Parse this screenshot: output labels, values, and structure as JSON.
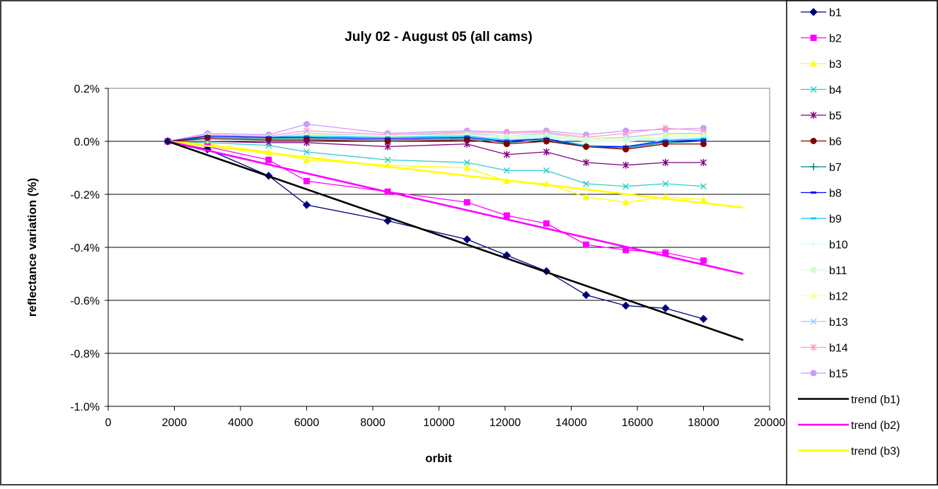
{
  "chart_data": {
    "type": "line",
    "title": "July 02 - August 05 (all cams)",
    "xlabel": "orbit",
    "ylabel": "reflectance variation (%)",
    "xlim": [
      0,
      20000
    ],
    "ylim": [
      -1.0,
      0.2
    ],
    "x_ticks": [
      "0",
      "2000",
      "4000",
      "6000",
      "8000",
      "10000",
      "12000",
      "14000",
      "16000",
      "18000",
      "20000"
    ],
    "y_ticks": [
      "0.2%",
      "0.0%",
      "-0.2%",
      "-0.4%",
      "-0.6%",
      "-0.8%",
      "-1.0%"
    ],
    "grid": "horizontal major",
    "legend_position": "right",
    "x": [
      1800,
      3000,
      4850,
      6000,
      8450,
      10850,
      12050,
      13250,
      14450,
      15650,
      16850,
      18000
    ],
    "series": [
      {
        "name": "b1",
        "color": "#000080",
        "marker": "diamond",
        "values": [
          0.0,
          -0.03,
          -0.13,
          -0.24,
          -0.3,
          -0.37,
          -0.43,
          -0.49,
          -0.58,
          -0.62,
          -0.63,
          -0.67
        ]
      },
      {
        "name": "b2",
        "color": "#ff00ff",
        "marker": "square",
        "values": [
          0.0,
          -0.02,
          -0.07,
          -0.15,
          -0.19,
          -0.23,
          -0.28,
          -0.31,
          -0.39,
          -0.41,
          -0.42,
          -0.45
        ]
      },
      {
        "name": "b3",
        "color": "#ffff00",
        "marker": "triangle",
        "values": [
          0.0,
          -0.01,
          -0.04,
          -0.07,
          -0.09,
          -0.1,
          -0.15,
          -0.16,
          -0.21,
          -0.23,
          -0.21,
          -0.22
        ]
      },
      {
        "name": "b4",
        "color": "#33cccc",
        "marker": "x",
        "values": [
          0.0,
          -0.005,
          -0.015,
          -0.04,
          -0.07,
          -0.08,
          -0.11,
          -0.11,
          -0.16,
          -0.17,
          -0.16,
          -0.17
        ]
      },
      {
        "name": "b5",
        "color": "#800080",
        "marker": "star",
        "values": [
          0.0,
          0.0,
          -0.005,
          -0.005,
          -0.02,
          -0.01,
          -0.05,
          -0.04,
          -0.08,
          -0.09,
          -0.08,
          -0.08
        ]
      },
      {
        "name": "b6",
        "color": "#800000",
        "marker": "circle",
        "values": [
          0.0,
          0.01,
          0.005,
          0.005,
          0.0,
          0.005,
          -0.01,
          0.0,
          -0.02,
          -0.03,
          -0.01,
          -0.01
        ]
      },
      {
        "name": "b7",
        "color": "#008080",
        "marker": "plus",
        "values": [
          0.0,
          0.015,
          0.01,
          0.01,
          0.005,
          0.01,
          -0.005,
          0.005,
          -0.02,
          -0.025,
          -0.005,
          0.0
        ]
      },
      {
        "name": "b8",
        "color": "#0000ff",
        "marker": "dash",
        "values": [
          0.0,
          0.02,
          0.015,
          0.015,
          0.01,
          0.015,
          0.0,
          0.01,
          -0.02,
          -0.02,
          0.0,
          0.005
        ]
      },
      {
        "name": "b9",
        "color": "#00ccff",
        "marker": "dash",
        "values": [
          0.0,
          0.02,
          0.015,
          0.02,
          0.015,
          0.02,
          0.005,
          0.01,
          -0.015,
          -0.02,
          0.005,
          0.01
        ]
      },
      {
        "name": "b10",
        "color": "#ccffff",
        "marker": "plus",
        "values": [
          0.0,
          0.02,
          0.01,
          0.02,
          0.01,
          0.02,
          0.01,
          0.015,
          0.0,
          0.0,
          0.01,
          0.01
        ]
      },
      {
        "name": "b11",
        "color": "#ccffcc",
        "marker": "circle",
        "values": [
          0.0,
          0.02,
          0.015,
          0.02,
          0.015,
          0.025,
          0.015,
          0.02,
          0.005,
          0.005,
          0.015,
          0.02
        ]
      },
      {
        "name": "b12",
        "color": "#ffff99",
        "marker": "triangle",
        "values": [
          0.0,
          0.02,
          0.01,
          0.025,
          0.02,
          0.025,
          0.02,
          0.025,
          0.01,
          0.01,
          0.025,
          0.025
        ]
      },
      {
        "name": "b13",
        "color": "#99ccff",
        "marker": "x",
        "values": [
          0.0,
          0.02,
          0.015,
          0.03,
          0.02,
          0.03,
          0.02,
          0.03,
          0.01,
          0.015,
          0.03,
          0.03
        ]
      },
      {
        "name": "b14",
        "color": "#ff99cc",
        "marker": "star",
        "values": [
          0.0,
          0.025,
          0.02,
          0.04,
          0.025,
          0.035,
          0.03,
          0.035,
          0.015,
          0.03,
          0.05,
          0.04
        ]
      },
      {
        "name": "b15",
        "color": "#cc99ff",
        "marker": "circle",
        "values": [
          0.0,
          0.03,
          0.025,
          0.065,
          0.03,
          0.04,
          0.035,
          0.04,
          0.025,
          0.04,
          0.045,
          0.05
        ]
      }
    ],
    "trends": [
      {
        "name": "trend (b1)",
        "color": "#000000",
        "x": [
          1800,
          19200
        ],
        "values": [
          0.0,
          -0.75
        ]
      },
      {
        "name": "trend (b2)",
        "color": "#ff00ff",
        "x": [
          1800,
          19200
        ],
        "values": [
          0.0,
          -0.5
        ]
      },
      {
        "name": "trend (b3)",
        "color": "#ffff00",
        "x": [
          1800,
          19200
        ],
        "values": [
          0.0,
          -0.25
        ]
      }
    ]
  }
}
